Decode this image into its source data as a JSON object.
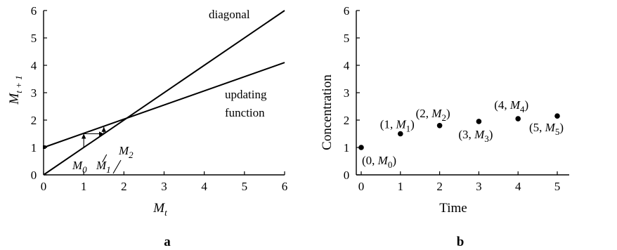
{
  "panels": {
    "a": {
      "letter": "a",
      "xlabel": {
        "main": "M",
        "sub": "t"
      },
      "ylabel": {
        "main": "M",
        "sub": "t + 1"
      },
      "annotations": {
        "diagonal": "diagonal",
        "updating_line1": "updating",
        "updating_line2": "function",
        "m0": {
          "main": "M",
          "sub": "0"
        },
        "m1": {
          "main": "M",
          "sub": "1"
        },
        "m2": {
          "main": "M",
          "sub": "2"
        }
      }
    },
    "b": {
      "letter": "b",
      "xlabel": "Time",
      "ylabel": "Concentration",
      "point_labels": [
        {
          "pre": "(0, ",
          "main": "M",
          "sub": "0",
          "post": ")"
        },
        {
          "pre": "(1, ",
          "main": "M",
          "sub": "1",
          "post": ")"
        },
        {
          "pre": "(2, ",
          "main": "M",
          "sub": "2",
          "post": ")"
        },
        {
          "pre": "(3, ",
          "main": "M",
          "sub": "3",
          "post": ")"
        },
        {
          "pre": "(4, ",
          "main": "M",
          "sub": "4",
          "post": ")"
        },
        {
          "pre": "(5, ",
          "main": "M",
          "sub": "5",
          "post": ")"
        }
      ]
    }
  },
  "chart_data": [
    {
      "type": "line",
      "panel": "a",
      "xlim": [
        0,
        6
      ],
      "ylim": [
        0,
        6
      ],
      "xticks": [
        0,
        1,
        2,
        3,
        4,
        5,
        6
      ],
      "yticks": [
        0,
        1,
        2,
        3,
        4,
        5,
        6
      ],
      "series": [
        {
          "name": "diagonal",
          "x": [
            0,
            6
          ],
          "y": [
            0,
            6
          ]
        },
        {
          "name": "updating function",
          "x": [
            0,
            6
          ],
          "y": [
            1,
            4.1
          ]
        }
      ],
      "cobweb": [
        [
          1,
          1
        ],
        [
          1,
          1.5
        ],
        [
          1.5,
          1.5
        ],
        [
          1.5,
          1.75
        ]
      ],
      "marked_x": [
        1,
        1.5,
        1.75
      ]
    },
    {
      "type": "scatter",
      "panel": "b",
      "xlim": [
        0,
        5
      ],
      "ylim": [
        0,
        6
      ],
      "xticks": [
        0,
        1,
        2,
        3,
        4,
        5
      ],
      "yticks": [
        0,
        1,
        2,
        3,
        4,
        5,
        6
      ],
      "x": [
        0,
        1,
        2,
        3,
        4,
        5
      ],
      "y": [
        1,
        1.5,
        1.8,
        1.95,
        2.05,
        2.15
      ]
    }
  ]
}
